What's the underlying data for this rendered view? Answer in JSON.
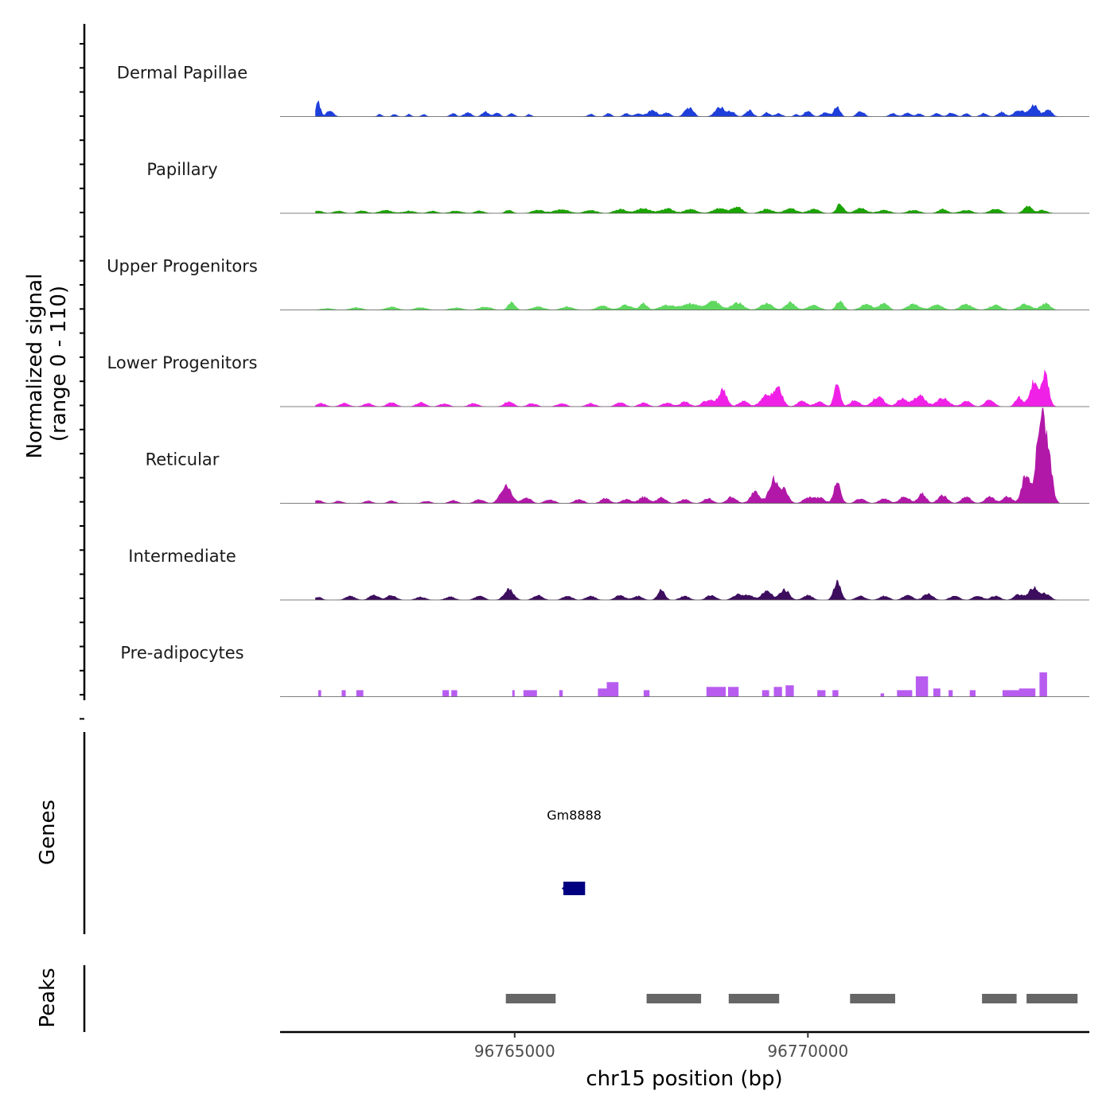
{
  "chart_data": {
    "type": "area",
    "title": "",
    "chromosome": "chr15",
    "xlabel": "chr15 position (bp)",
    "ylabel": "Normalized signal",
    "ylabel_range": "(range 0 - 110)",
    "xlim": [
      96761000,
      96774800
    ],
    "ylim": [
      0,
      110
    ],
    "x_ticks": [
      96765000,
      96770000
    ],
    "x_tick_labels": [
      "96765000",
      "96770000"
    ],
    "series": [
      {
        "name": "Dermal Papillae",
        "color": "#1f3fdb",
        "peaks": [
          [
            96761650,
            18,
            40
          ],
          [
            96761850,
            7,
            60
          ],
          [
            96762700,
            3,
            40
          ],
          [
            96762950,
            3,
            40
          ],
          [
            96763200,
            3,
            40
          ],
          [
            96763450,
            3,
            40
          ],
          [
            96763950,
            4,
            50
          ],
          [
            96764200,
            5,
            60
          ],
          [
            96764500,
            6,
            60
          ],
          [
            96764700,
            5,
            50
          ],
          [
            96764950,
            4,
            50
          ],
          [
            96765250,
            3,
            40
          ],
          [
            96766300,
            3,
            50
          ],
          [
            96766600,
            4,
            50
          ],
          [
            96766900,
            4,
            50
          ],
          [
            96767100,
            4,
            60
          ],
          [
            96767350,
            8,
            80
          ],
          [
            96767600,
            5,
            60
          ],
          [
            96767900,
            4,
            50
          ],
          [
            96768000,
            10,
            60
          ],
          [
            96768500,
            12,
            80
          ],
          [
            96768700,
            6,
            60
          ],
          [
            96769000,
            8,
            60
          ],
          [
            96769300,
            5,
            50
          ],
          [
            96769500,
            4,
            60
          ],
          [
            96769800,
            3,
            40
          ],
          [
            96770000,
            7,
            60
          ],
          [
            96770300,
            6,
            60
          ],
          [
            96770500,
            13,
            50
          ],
          [
            96770900,
            7,
            60
          ],
          [
            96771450,
            4,
            60
          ],
          [
            96771700,
            5,
            60
          ],
          [
            96771900,
            4,
            50
          ],
          [
            96772200,
            4,
            60
          ],
          [
            96772450,
            5,
            60
          ],
          [
            96772700,
            4,
            50
          ],
          [
            96773000,
            4,
            60
          ],
          [
            96773300,
            6,
            60
          ],
          [
            96773600,
            8,
            80
          ],
          [
            96773850,
            14,
            80
          ],
          [
            96774100,
            9,
            60
          ]
        ]
      },
      {
        "name": "Papillary",
        "color": "#1aa400",
        "peaks": [
          [
            96761650,
            3,
            80
          ],
          [
            96762000,
            3,
            80
          ],
          [
            96762400,
            3,
            80
          ],
          [
            96762800,
            4,
            100
          ],
          [
            96763200,
            3,
            100
          ],
          [
            96763600,
            3,
            80
          ],
          [
            96764000,
            3,
            100
          ],
          [
            96764400,
            3,
            80
          ],
          [
            96764900,
            4,
            60
          ],
          [
            96765400,
            4,
            100
          ],
          [
            96765800,
            5,
            120
          ],
          [
            96766300,
            4,
            100
          ],
          [
            96766800,
            5,
            100
          ],
          [
            96767200,
            6,
            120
          ],
          [
            96767600,
            6,
            100
          ],
          [
            96768000,
            5,
            100
          ],
          [
            96768500,
            6,
            120
          ],
          [
            96768800,
            8,
            80
          ],
          [
            96769300,
            5,
            100
          ],
          [
            96769700,
            6,
            100
          ],
          [
            96770100,
            5,
            100
          ],
          [
            96770550,
            12,
            60
          ],
          [
            96770900,
            6,
            100
          ],
          [
            96771300,
            4,
            100
          ],
          [
            96771800,
            4,
            100
          ],
          [
            96772300,
            5,
            80
          ],
          [
            96772700,
            4,
            100
          ],
          [
            96773200,
            5,
            100
          ],
          [
            96773750,
            9,
            70
          ],
          [
            96774000,
            4,
            80
          ]
        ]
      },
      {
        "name": "Upper Progenitors",
        "color": "#5fd85f",
        "peaks": [
          [
            96761800,
            2,
            100
          ],
          [
            96762300,
            3,
            100
          ],
          [
            96762900,
            4,
            100
          ],
          [
            96763400,
            3,
            100
          ],
          [
            96764000,
            3,
            100
          ],
          [
            96764500,
            4,
            100
          ],
          [
            96764950,
            10,
            60
          ],
          [
            96765400,
            4,
            100
          ],
          [
            96765900,
            4,
            100
          ],
          [
            96766500,
            5,
            100
          ],
          [
            96766900,
            6,
            100
          ],
          [
            96767200,
            8,
            60
          ],
          [
            96767600,
            6,
            120
          ],
          [
            96768000,
            8,
            150
          ],
          [
            96768400,
            11,
            100
          ],
          [
            96768800,
            9,
            100
          ],
          [
            96769300,
            8,
            100
          ],
          [
            96769700,
            10,
            80
          ],
          [
            96770100,
            6,
            100
          ],
          [
            96770550,
            12,
            60
          ],
          [
            96771000,
            7,
            100
          ],
          [
            96771300,
            9,
            70
          ],
          [
            96771800,
            7,
            100
          ],
          [
            96772200,
            6,
            100
          ],
          [
            96772700,
            7,
            100
          ],
          [
            96773200,
            6,
            100
          ],
          [
            96773700,
            7,
            100
          ],
          [
            96774050,
            8,
            80
          ]
        ]
      },
      {
        "name": "Lower Progenitors",
        "color": "#f021e6",
        "peaks": [
          [
            96761700,
            4,
            80
          ],
          [
            96762100,
            4,
            80
          ],
          [
            96762500,
            4,
            80
          ],
          [
            96762900,
            5,
            80
          ],
          [
            96763400,
            5,
            80
          ],
          [
            96763800,
            4,
            80
          ],
          [
            96764300,
            4,
            80
          ],
          [
            96764900,
            6,
            80
          ],
          [
            96765300,
            4,
            80
          ],
          [
            96765800,
            4,
            80
          ],
          [
            96766300,
            4,
            80
          ],
          [
            96766800,
            5,
            80
          ],
          [
            96767200,
            5,
            80
          ],
          [
            96767600,
            5,
            80
          ],
          [
            96767900,
            6,
            80
          ],
          [
            96768300,
            8,
            100
          ],
          [
            96768550,
            20,
            70
          ],
          [
            96768900,
            7,
            80
          ],
          [
            96769300,
            15,
            100
          ],
          [
            96769500,
            22,
            70
          ],
          [
            96769900,
            7,
            80
          ],
          [
            96770200,
            6,
            80
          ],
          [
            96770500,
            30,
            50
          ],
          [
            96770800,
            8,
            80
          ],
          [
            96771200,
            12,
            100
          ],
          [
            96771600,
            10,
            80
          ],
          [
            96771900,
            14,
            100
          ],
          [
            96772300,
            11,
            100
          ],
          [
            96772700,
            7,
            80
          ],
          [
            96773100,
            8,
            80
          ],
          [
            96773600,
            12,
            60
          ],
          [
            96773850,
            30,
            70
          ],
          [
            96774050,
            40,
            60
          ]
        ]
      },
      {
        "name": "Reticular",
        "color": "#b218a8",
        "peaks": [
          [
            96761650,
            4,
            70
          ],
          [
            96762000,
            3,
            70
          ],
          [
            96762500,
            3,
            70
          ],
          [
            96762900,
            3,
            70
          ],
          [
            96763500,
            3,
            70
          ],
          [
            96763950,
            4,
            70
          ],
          [
            96764400,
            5,
            80
          ],
          [
            96764850,
            22,
            90
          ],
          [
            96765200,
            7,
            80
          ],
          [
            96765600,
            5,
            80
          ],
          [
            96766100,
            5,
            80
          ],
          [
            96766550,
            6,
            80
          ],
          [
            96766900,
            5,
            80
          ],
          [
            96767200,
            8,
            80
          ],
          [
            96767500,
            7,
            80
          ],
          [
            96767900,
            5,
            80
          ],
          [
            96768300,
            6,
            80
          ],
          [
            96768700,
            8,
            80
          ],
          [
            96769100,
            14,
            80
          ],
          [
            96769420,
            30,
            80
          ],
          [
            96769600,
            15,
            70
          ],
          [
            96770000,
            7,
            80
          ],
          [
            96770200,
            7,
            80
          ],
          [
            96770500,
            25,
            60
          ],
          [
            96770900,
            6,
            80
          ],
          [
            96771300,
            6,
            80
          ],
          [
            96771650,
            9,
            80
          ],
          [
            96771950,
            12,
            70
          ],
          [
            96772300,
            10,
            80
          ],
          [
            96772700,
            8,
            80
          ],
          [
            96773100,
            8,
            80
          ],
          [
            96773400,
            9,
            80
          ],
          [
            96773720,
            38,
            70
          ],
          [
            96773980,
            104,
            80
          ],
          [
            96774120,
            40,
            60
          ]
        ]
      },
      {
        "name": "Intermediate",
        "color": "#3d0d5e",
        "peaks": [
          [
            96761650,
            4,
            60
          ],
          [
            96762200,
            5,
            80
          ],
          [
            96762600,
            6,
            80
          ],
          [
            96762900,
            6,
            80
          ],
          [
            96763400,
            4,
            80
          ],
          [
            96763900,
            4,
            80
          ],
          [
            96764400,
            5,
            80
          ],
          [
            96764900,
            14,
            80
          ],
          [
            96765400,
            6,
            80
          ],
          [
            96765900,
            5,
            80
          ],
          [
            96766300,
            5,
            80
          ],
          [
            96766800,
            6,
            80
          ],
          [
            96767100,
            5,
            80
          ],
          [
            96767500,
            13,
            60
          ],
          [
            96767900,
            5,
            80
          ],
          [
            96768350,
            6,
            80
          ],
          [
            96768800,
            7,
            80
          ],
          [
            96769000,
            6,
            80
          ],
          [
            96769300,
            12,
            80
          ],
          [
            96769600,
            13,
            80
          ],
          [
            96770000,
            6,
            80
          ],
          [
            96770500,
            22,
            60
          ],
          [
            96770900,
            5,
            80
          ],
          [
            96771300,
            5,
            80
          ],
          [
            96771700,
            6,
            80
          ],
          [
            96772050,
            8,
            80
          ],
          [
            96772500,
            5,
            80
          ],
          [
            96772900,
            5,
            80
          ],
          [
            96773200,
            5,
            80
          ],
          [
            96773600,
            7,
            80
          ],
          [
            96773850,
            15,
            80
          ],
          [
            96774050,
            8,
            80
          ]
        ]
      },
      {
        "name": "Pre-adipocytes",
        "color": "#b85cf0",
        "blocks": [
          [
            96761650,
            96761700,
            8
          ],
          [
            96762050,
            96762120,
            8
          ],
          [
            96762300,
            96762420,
            8
          ],
          [
            96763770,
            96763880,
            8
          ],
          [
            96763920,
            96764020,
            8
          ],
          [
            96764960,
            96765000,
            8
          ],
          [
            96765150,
            96765380,
            8
          ],
          [
            96765760,
            96765820,
            8
          ],
          [
            96766420,
            96766570,
            10
          ],
          [
            96766570,
            96766770,
            18
          ],
          [
            96767200,
            96767300,
            8
          ],
          [
            96768270,
            96768600,
            12
          ],
          [
            96768640,
            96768820,
            12
          ],
          [
            96769220,
            96769340,
            8
          ],
          [
            96769420,
            96769560,
            12
          ],
          [
            96769620,
            96769760,
            14
          ],
          [
            96770160,
            96770300,
            8
          ],
          [
            96770420,
            96770520,
            8
          ],
          [
            96771240,
            96771300,
            4
          ],
          [
            96771520,
            96771780,
            8
          ],
          [
            96771840,
            96772050,
            25
          ],
          [
            96772140,
            96772260,
            10
          ],
          [
            96772400,
            96772470,
            8
          ],
          [
            96772760,
            96772860,
            8
          ],
          [
            96773320,
            96773600,
            8
          ],
          [
            96773600,
            96773880,
            10
          ],
          [
            96773950,
            96774080,
            30
          ]
        ]
      }
    ],
    "genes": [
      {
        "name": "Gm8888",
        "start": 96765830,
        "end": 96766200,
        "strand": "-",
        "color": "#000080"
      }
    ],
    "peaks_track_label": "Peaks",
    "genes_track_label": "Genes",
    "peaks": [
      [
        96764850,
        96765700
      ],
      [
        96767250,
        96768180
      ],
      [
        96768650,
        96769510
      ],
      [
        96770720,
        96771490
      ],
      [
        96772970,
        96773560
      ],
      [
        96773730,
        96774600
      ]
    ],
    "peaks_color": "#666666"
  }
}
